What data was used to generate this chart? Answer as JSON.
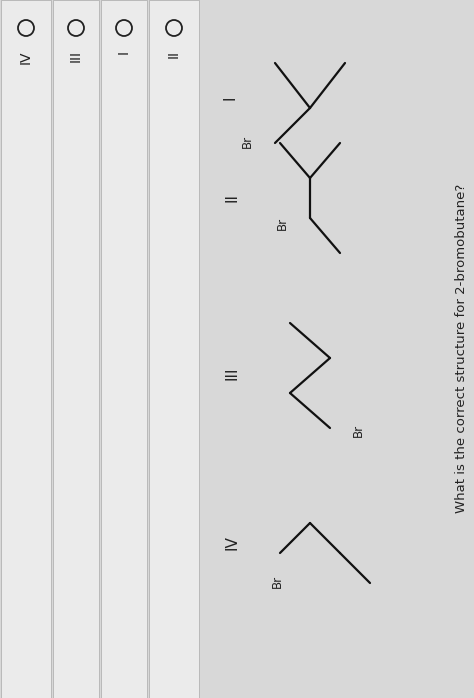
{
  "title": "What is the correct structure for 2-bromobutane?",
  "bg_color": "#d8d8d8",
  "white": "#f0f0f0",
  "text_color": "#222222",
  "line_color": "#111111",
  "strip_color": "#ebebeb",
  "options": [
    "II",
    "I",
    "III",
    "IV"
  ],
  "title_fontsize": 9.5,
  "label_fontsize": 10,
  "br_fontsize": 8.5,
  "lw": 1.6,
  "fig_width": 4.74,
  "fig_height": 6.98
}
